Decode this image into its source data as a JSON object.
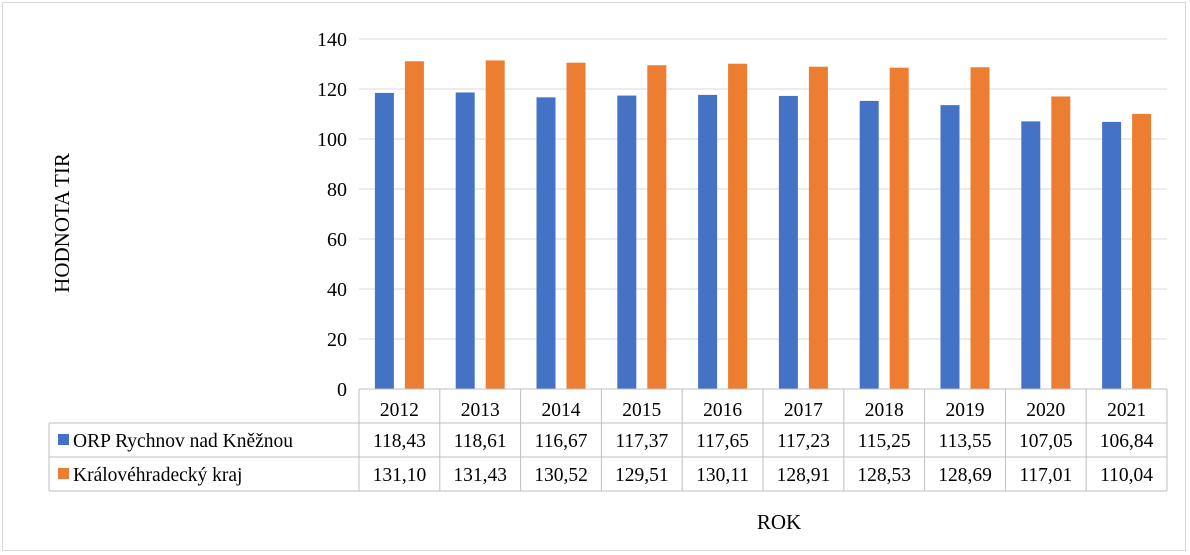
{
  "chart_data": {
    "type": "bar",
    "categories": [
      "2012",
      "2013",
      "2014",
      "2015",
      "2016",
      "2017",
      "2018",
      "2019",
      "2020",
      "2021"
    ],
    "series": [
      {
        "name": "ORP Rychnov nad Kněžnou",
        "color": "#4472c4",
        "values": [
          118.43,
          118.61,
          116.67,
          117.37,
          117.65,
          117.23,
          115.25,
          113.55,
          107.05,
          106.84
        ],
        "labels": [
          "118,43",
          "118,61",
          "116,67",
          "117,37",
          "117,65",
          "117,23",
          "115,25",
          "113,55",
          "107,05",
          "106,84"
        ]
      },
      {
        "name": "Královéhradecký kraj",
        "color": "#ed7d31",
        "values": [
          131.1,
          131.43,
          130.52,
          129.51,
          130.11,
          128.91,
          128.53,
          128.69,
          117.01,
          110.04
        ],
        "labels": [
          "131,10",
          "131,43",
          "130,52",
          "129,51",
          "130,11",
          "128,91",
          "128,53",
          "128,69",
          "117,01",
          "110,04"
        ]
      }
    ],
    "xlabel": "ROK",
    "ylabel": "HODNOTA TIR",
    "ylim": [
      0,
      140
    ],
    "yticks": [
      "0",
      "20",
      "40",
      "60",
      "80",
      "100",
      "120",
      "140"
    ],
    "grid": true,
    "legend": "data-table"
  }
}
